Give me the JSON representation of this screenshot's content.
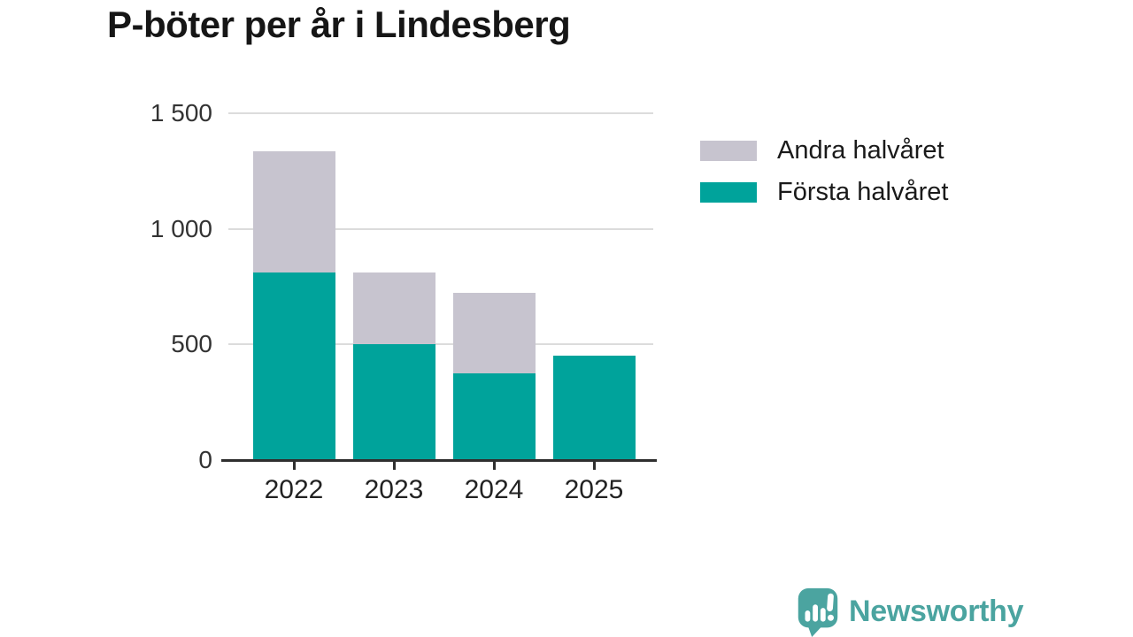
{
  "title": "P-böter per år i Lindesberg",
  "colors": {
    "first_half": "#00a39b",
    "second_half": "#c7c4cf",
    "grid": "#dcdcdc",
    "axis": "#2f2f2f",
    "text": "#1a1a1a",
    "brand": "#4ba4a0"
  },
  "legend": [
    {
      "label": "Andra halvåret",
      "color": "#c7c4cf"
    },
    {
      "label": "Första halvåret",
      "color": "#00a39b"
    }
  ],
  "branding": {
    "name": "Newsworthy",
    "icon": "bar-chart-speech-bubble-icon"
  },
  "chart_data": {
    "type": "bar",
    "stacked": true,
    "title": "P-böter per år i Lindesberg",
    "categories": [
      "2022",
      "2023",
      "2024",
      "2025"
    ],
    "series": [
      {
        "name": "Första halvåret",
        "color": "#00a39b",
        "values": [
          810,
          500,
          375,
          450
        ]
      },
      {
        "name": "Andra halvåret",
        "color": "#c7c4cf",
        "values": [
          525,
          310,
          350,
          0
        ]
      }
    ],
    "totals": [
      1335,
      810,
      725,
      450
    ],
    "xlabel": "",
    "ylabel": "",
    "ylim": [
      0,
      1500
    ],
    "yticks": [
      0,
      500,
      1000,
      1500
    ],
    "ytick_labels": [
      "0",
      "500",
      "1 000",
      "1 500"
    ],
    "grid": true,
    "legend_position": "right"
  }
}
